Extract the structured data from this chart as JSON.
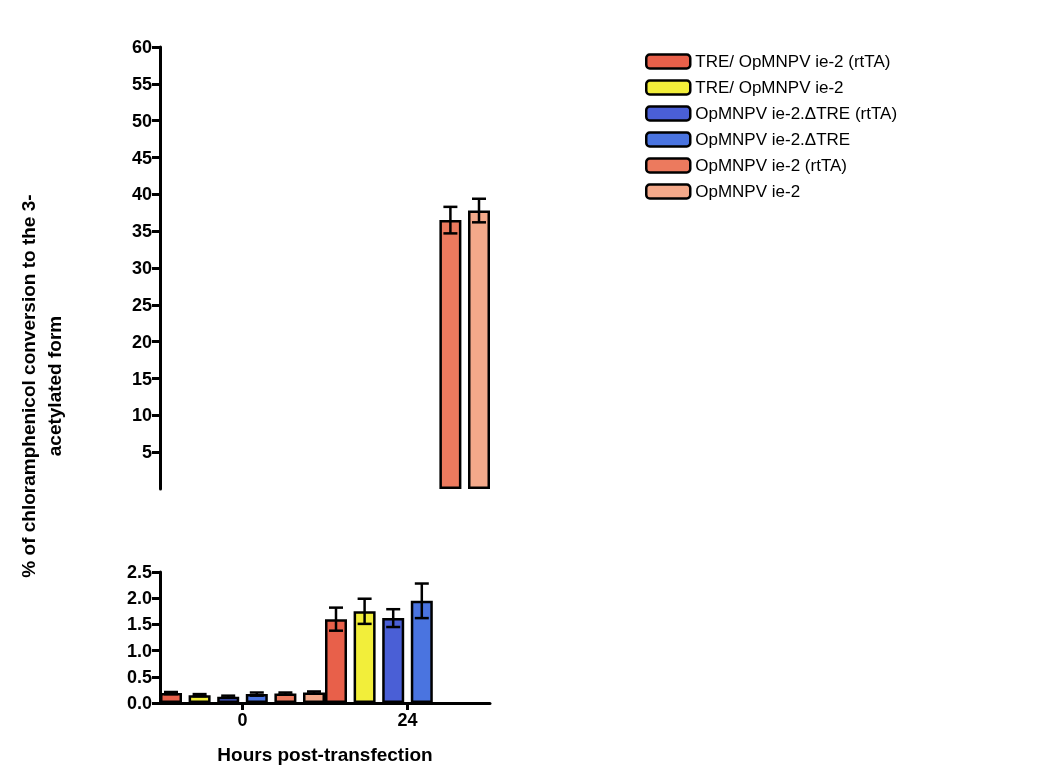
{
  "chart_data": [
    {
      "type": "bar",
      "ylabel": "% of chloramphenicol conversion to the 3-acetylated form",
      "categories": [
        "0",
        "24"
      ],
      "ylim": [
        0,
        60
      ],
      "yticks": [
        5,
        10,
        15,
        20,
        25,
        30,
        35,
        40,
        45,
        50,
        55,
        60
      ],
      "tick_labels": "y",
      "legend": "right",
      "grid": false,
      "series": [
        {
          "name": "TRE/ OpMNPV ie-2 (rtTA)",
          "color": "#e8604a",
          "values": [
            null,
            null
          ],
          "errors": [
            null,
            null
          ]
        },
        {
          "name": "TRE/ OpMNPV ie-2",
          "color": "#f2ee3a",
          "values": [
            null,
            null
          ],
          "errors": [
            null,
            null
          ]
        },
        {
          "name": "OpMNPV ie-2.ΔTRE (rtTA)",
          "color": "#4a5fd6",
          "values": [
            null,
            null
          ],
          "errors": [
            null,
            null
          ]
        },
        {
          "name": "OpMNPV ie-2.ΔTRE",
          "color": "#4a74e0",
          "values": [
            null,
            null
          ],
          "errors": [
            null,
            null
          ]
        },
        {
          "name": "OpMNPV ie-2 (rtTA)",
          "color": "#ec7a5e",
          "values": [
            null,
            36.5
          ],
          "errors": [
            null,
            1.8
          ]
        },
        {
          "name": "OpMNPV ie-2",
          "color": "#f4a98a",
          "values": [
            null,
            37.8
          ],
          "errors": [
            null,
            1.6
          ]
        }
      ]
    },
    {
      "type": "bar",
      "xlabel": "Hours post-transfection",
      "categories": [
        "0",
        "24"
      ],
      "ylim": [
        0,
        2.5
      ],
      "yticks": [
        {
          "value": 0,
          "label": "0.0"
        },
        0.5,
        {
          "value": 1,
          "label": "1.0"
        },
        1.5,
        {
          "value": 2,
          "label": "2.0"
        },
        2.5
      ],
      "grid": false,
      "series": [
        {
          "color": "#e8604a",
          "values": [
            0.19,
            1.6
          ],
          "errors": [
            0.02,
            0.22
          ]
        },
        {
          "color": "#f2ee3a",
          "values": [
            0.15,
            1.75
          ],
          "errors": [
            0.02,
            0.24
          ]
        },
        {
          "color": "#4a5fd6",
          "values": [
            0.12,
            1.62
          ],
          "errors": [
            0.02,
            0.17
          ]
        },
        {
          "color": "#4a74e0",
          "values": [
            0.17,
            1.95
          ],
          "errors": [
            0.03,
            0.33
          ]
        },
        {
          "color": "#ec7a5e",
          "values": [
            0.18,
            null
          ],
          "errors": [
            0.02,
            null
          ]
        },
        {
          "color": "#f4a98a",
          "values": [
            0.2,
            null
          ],
          "errors": [
            0.02,
            null
          ]
        }
      ]
    }
  ]
}
